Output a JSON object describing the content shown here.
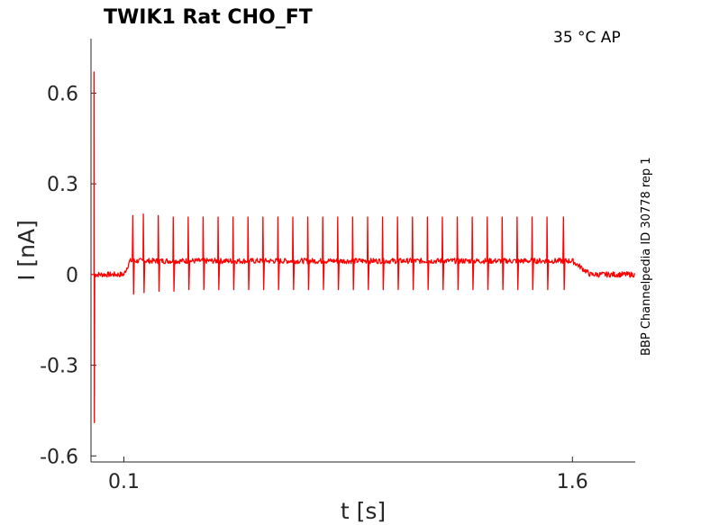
{
  "chart_data": {
    "type": "line",
    "title": "TWIK1  Rat  CHO_FT",
    "condition_label": "35 °C  AP",
    "side_label": "BBP Channelpedia ID 30778 rep 1",
    "xlabel": "t [s]",
    "ylabel": "I [nA]",
    "xlim": [
      -0.01,
      1.81
    ],
    "ylim": [
      -0.62,
      0.78
    ],
    "x_ticks": [
      0.1,
      1.6
    ],
    "x_tick_labels": [
      "0.1",
      "1.6"
    ],
    "y_ticks": [
      0.6,
      0.3,
      0,
      -0.3,
      -0.6
    ],
    "y_tick_labels": [
      "0.6",
      "0.3",
      "0",
      "-0.3",
      "-0.6"
    ],
    "grid": false,
    "series": [
      {
        "color": "#ff0000",
        "baseline": 0.0,
        "plateau": 0.045,
        "step_on": 0.1,
        "step_off": 1.6,
        "initial_transient": {
          "t": 0.0,
          "max": 0.67,
          "min": -0.49
        },
        "spike_times": [
          0.13,
          0.165,
          0.215,
          0.265,
          0.315,
          0.365,
          0.415,
          0.465,
          0.515,
          0.565,
          0.615,
          0.665,
          0.715,
          0.765,
          0.815,
          0.865,
          0.915,
          0.965,
          1.015,
          1.065,
          1.115,
          1.165,
          1.215,
          1.265,
          1.315,
          1.365,
          1.415,
          1.465,
          1.515,
          1.57
        ],
        "spike_peaks": [
          0.195,
          0.2,
          0.195,
          0.19,
          0.19,
          0.19,
          0.19,
          0.19,
          0.19,
          0.19,
          0.19,
          0.19,
          0.19,
          0.19,
          0.19,
          0.19,
          0.19,
          0.19,
          0.19,
          0.19,
          0.19,
          0.19,
          0.19,
          0.19,
          0.19,
          0.19,
          0.19,
          0.19,
          0.19,
          0.19
        ],
        "spike_troughs": [
          -0.065,
          -0.06,
          -0.055,
          -0.055,
          -0.05,
          -0.05,
          -0.05,
          -0.05,
          -0.05,
          -0.05,
          -0.05,
          -0.05,
          -0.05,
          -0.05,
          -0.05,
          -0.05,
          -0.05,
          -0.05,
          -0.05,
          -0.05,
          -0.05,
          -0.05,
          -0.05,
          -0.05,
          -0.05,
          -0.05,
          -0.05,
          -0.05,
          -0.05,
          -0.05
        ]
      }
    ]
  }
}
